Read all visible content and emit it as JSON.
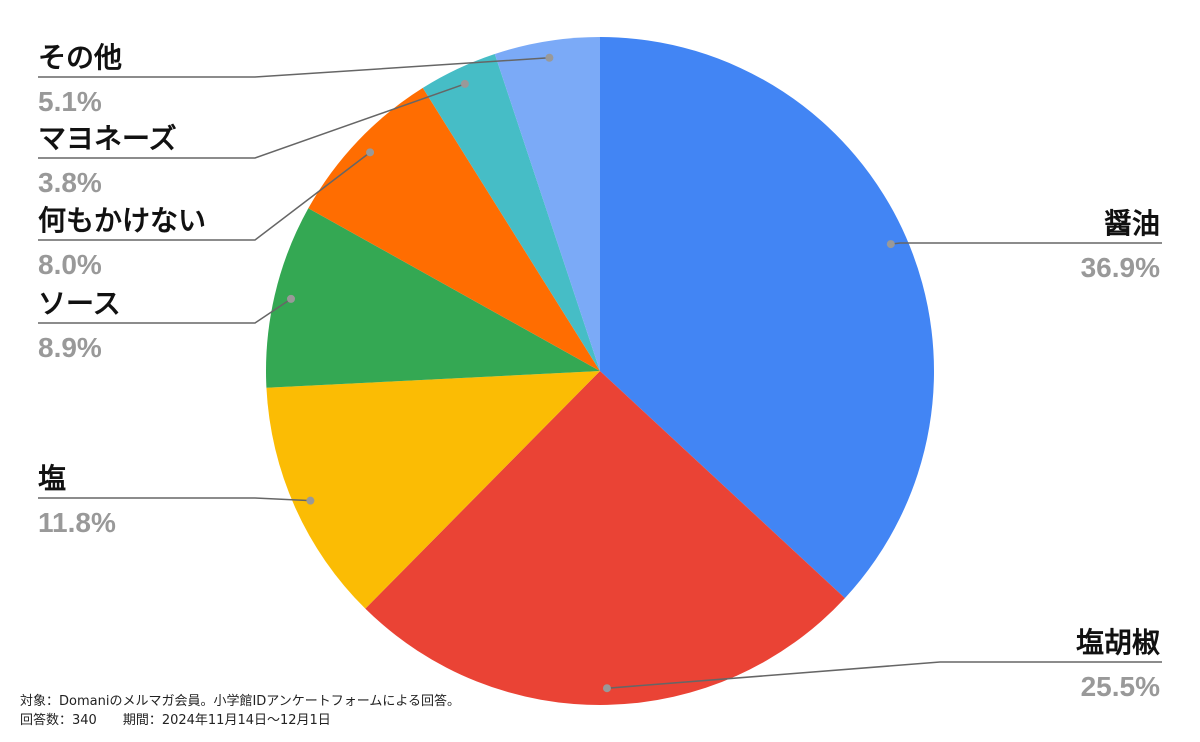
{
  "chart_data": {
    "type": "pie",
    "categories": [
      "醤油",
      "塩胡椒",
      "塩",
      "ソース",
      "何もかけない",
      "マヨネーズ",
      "その他"
    ],
    "values": [
      36.9,
      25.5,
      11.8,
      8.9,
      8.0,
      3.8,
      5.1
    ],
    "value_labels": [
      "36.9%",
      "25.5%",
      "11.8%",
      "8.9%",
      "8.0%",
      "3.8%",
      "5.1%"
    ],
    "colors": [
      "#4285f4",
      "#ea4335",
      "#fbbc04",
      "#34a853",
      "#ff6d01",
      "#46bdc6",
      "#7baaf7"
    ],
    "footnote": [
      "対象：Domaniのメルマガ会員。小学館IDアンケートフォームによる回答。",
      "回答数：340　　期間：2024年11月14日〜12月1日"
    ]
  }
}
